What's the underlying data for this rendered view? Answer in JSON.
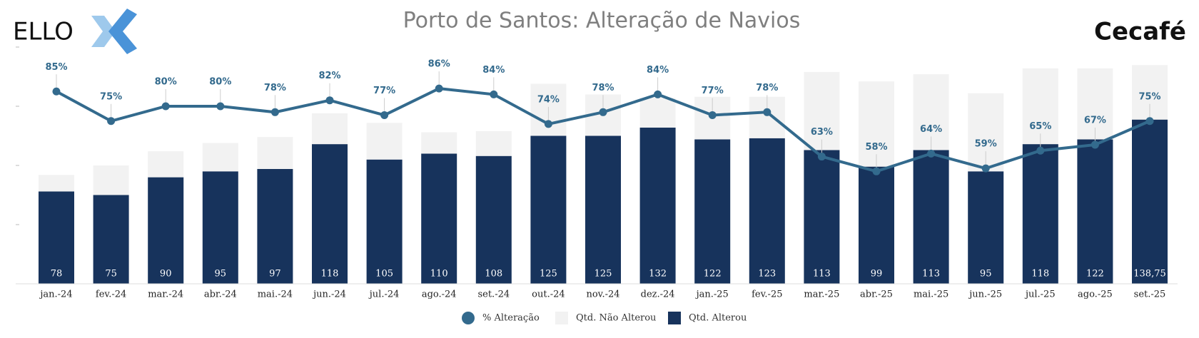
{
  "chart_data": {
    "type": "bar",
    "stacked": true,
    "title": "Porto de Santos: Alteração de Navios",
    "logo_left": "ELLO",
    "logo_right": "Cecafé",
    "categories": [
      "jan.-24",
      "fev.-24",
      "mar.-24",
      "abr.-24",
      "mai.-24",
      "jun.-24",
      "jul.-24",
      "ago.-24",
      "set.-24",
      "out.-24",
      "nov.-24",
      "dez.-24",
      "jan.-25",
      "fev.-25",
      "mar.-25",
      "abr.-25",
      "mai.-25",
      "jun.-25",
      "jul.-25",
      "ago.-25",
      "set.-25"
    ],
    "series": [
      {
        "name": "% Alteração",
        "type": "line",
        "axis": "y2",
        "color": "#336a8d",
        "values": [
          85,
          75,
          80,
          80,
          78,
          82,
          77,
          86,
          84,
          74,
          78,
          84,
          77,
          78,
          63,
          58,
          64,
          59,
          65,
          67,
          75
        ],
        "value_labels": [
          "85%",
          "75%",
          "80%",
          "80%",
          "78%",
          "82%",
          "77%",
          "86%",
          "84%",
          "74%",
          "78%",
          "84%",
          "77%",
          "78%",
          "63%",
          "58%",
          "64%",
          "59%",
          "65%",
          "67%",
          "75%"
        ]
      },
      {
        "name": "Qtd. Não Alterou",
        "type": "bar",
        "color": "#f2f2f2",
        "values": [
          14,
          25,
          22,
          24,
          27,
          26,
          31,
          18,
          21,
          44,
          35,
          25,
          36,
          35,
          66,
          72,
          64,
          66,
          64,
          60,
          46
        ]
      },
      {
        "name": "Qtd. Alterou",
        "type": "bar",
        "color": "#17335c",
        "values": [
          78,
          75,
          90,
          95,
          97,
          118,
          105,
          110,
          108,
          125,
          125,
          132,
          122,
          123,
          113,
          99,
          113,
          95,
          118,
          122,
          138.75
        ],
        "value_labels": [
          "78",
          "75",
          "90",
          "95",
          "97",
          "118",
          "105",
          "110",
          "108",
          "125",
          "125",
          "132",
          "122",
          "123",
          "113",
          "99",
          "113",
          "95",
          "118",
          "122",
          "138,75"
        ]
      }
    ],
    "ylim": [
      0,
      200
    ],
    "yticks": [
      0,
      50,
      100,
      150,
      200
    ],
    "y2lim": [
      20,
      100
    ],
    "legend": "bottom"
  }
}
